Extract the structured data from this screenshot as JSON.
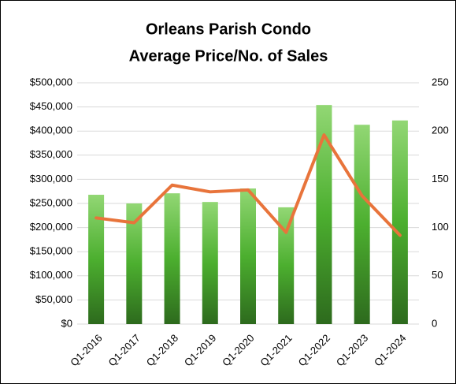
{
  "chart_data": {
    "type": "bar_line",
    "title": [
      "Orleans Parish Condo",
      "Average Price/No. of Sales"
    ],
    "categories": [
      "Q1-2016",
      "Q1-2017",
      "Q1-2018",
      "Q1-2019",
      "Q1-2020",
      "Q1-2021",
      "Q1-2022",
      "Q1-2023",
      "Q1-2024"
    ],
    "series": [
      {
        "type": "bar",
        "color": "#4caf2f",
        "values": [
          268000,
          250000,
          271000,
          253000,
          281000,
          242000,
          454000,
          413000,
          422000
        ]
      },
      {
        "type": "line",
        "axis": "y2",
        "color": "#e8743b",
        "values": [
          110,
          105,
          144,
          137,
          139,
          95,
          196,
          133,
          92
        ]
      }
    ],
    "ylim": [
      0,
      500000
    ],
    "yticks": [
      {
        "value": 0,
        "label": "$0"
      },
      {
        "value": 50000,
        "label": "$50,000"
      },
      {
        "value": 100000,
        "label": "$100,000"
      },
      {
        "value": 150000,
        "label": "$150,000"
      },
      {
        "value": 200000,
        "label": "$200,000"
      },
      {
        "value": 250000,
        "label": "$250,000"
      },
      {
        "value": 300000,
        "label": "$300,000"
      },
      {
        "value": 350000,
        "label": "$350,000"
      },
      {
        "value": 400000,
        "label": "$400,000"
      },
      {
        "value": 450000,
        "label": "$450,000"
      },
      {
        "value": 500000,
        "label": "$500,000"
      }
    ],
    "y2lim": [
      0,
      250
    ],
    "y2ticks": [
      0,
      50,
      100,
      150,
      200,
      250
    ],
    "grid": true
  }
}
